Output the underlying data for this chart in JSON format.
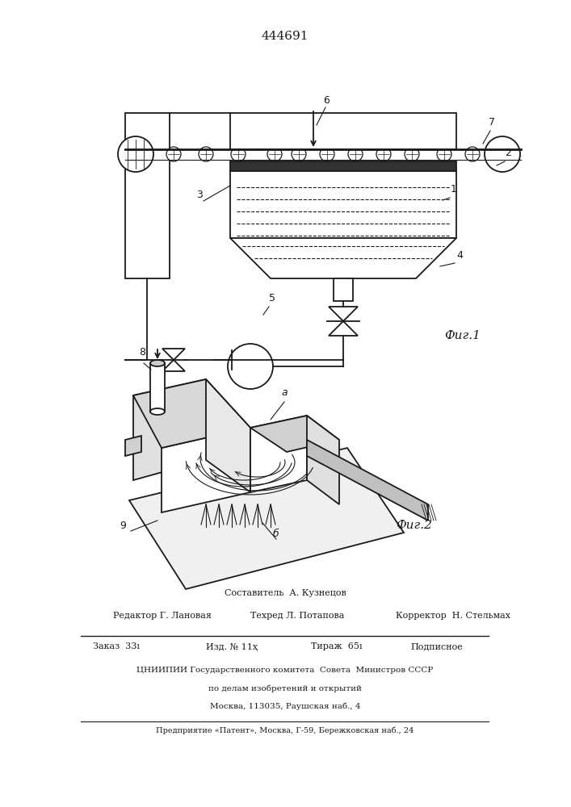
{
  "patent_number": "444691",
  "fig1_label": "Фиг.1",
  "fig2_label": "Фиг.2",
  "footer": {
    "sostavitel": "Составитель  А. Кузнецов",
    "redaktor": "Редактор Г. Лановая",
    "tehred": "Техред Л. Потапова",
    "korrektor": "Корректор  Н. Стельмах",
    "zakaz": "Заказ  33ı",
    "izd": "Изд. № 11ҳ",
    "tirazh": "Тираж  65ı",
    "podpisnoe": "Подписное",
    "tsniipii": "ЦНИИПИИ Государственного комитета  Совета  Министров СССР",
    "po_delam": "по делам изобретений и открытий",
    "moskva": "Москва, 113035, Раушская наб., 4",
    "predpriyatie": "Предприятие «Патент», Москва, Г-59, Бережковская наб., 24"
  },
  "bg_color": "#ffffff",
  "line_color": "#1a1a1a"
}
